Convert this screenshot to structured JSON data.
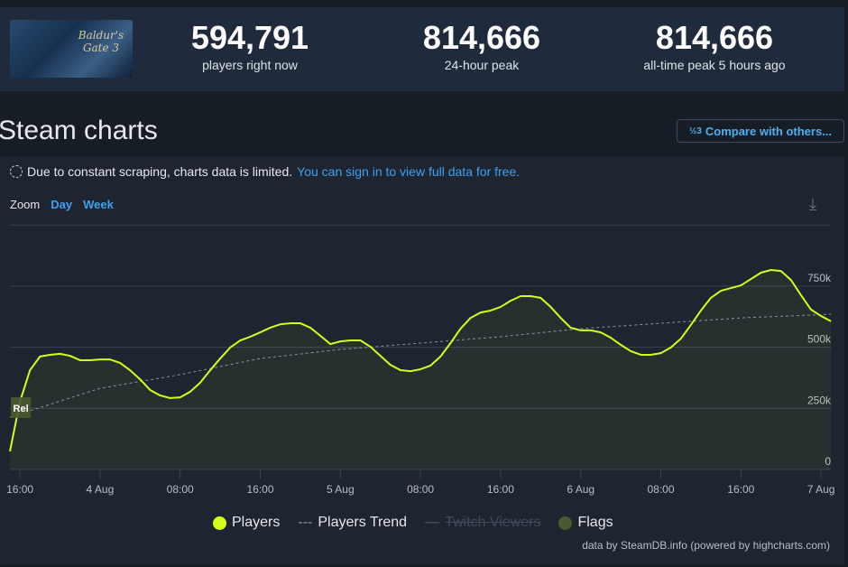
{
  "game": {
    "cover_text": "Baldur's Gate 3"
  },
  "stats": [
    {
      "value": "594,791",
      "label": "players right now"
    },
    {
      "value": "814,666",
      "label": "24-hour peak"
    },
    {
      "value": "814,666",
      "label": "all-time peak 5 hours ago"
    }
  ],
  "title": "Steam charts",
  "compare": {
    "icon": "fraction-icon",
    "icon_text": "½3",
    "label": "Compare with others..."
  },
  "notice": {
    "text": "Due to constant scraping, charts data is limited.",
    "link": "You can sign in to view full data for free."
  },
  "zoom": {
    "label": "Zoom",
    "options": [
      "Day",
      "Week"
    ]
  },
  "legend": {
    "players": "Players",
    "trend": "Players Trend",
    "twitch": "Twitch Viewers",
    "flags": "Flags"
  },
  "credit": "data by SteamDB.info (powered by highcharts.com)",
  "chart_data": {
    "type": "line",
    "ylim": [
      0,
      1000000
    ],
    "yticks": [
      {
        "v": 0,
        "label": "0"
      },
      {
        "v": 250000,
        "label": "250k"
      },
      {
        "v": 500000,
        "label": "500k"
      },
      {
        "v": 750000,
        "label": "750k"
      }
    ],
    "xticks": [
      {
        "t": "3 16",
        "label": "16:00"
      },
      {
        "t": "4 0",
        "label": "4 Aug"
      },
      {
        "t": "4 8",
        "label": "08:00"
      },
      {
        "t": "4 16",
        "label": "16:00"
      },
      {
        "t": "5 0",
        "label": "5 Aug"
      },
      {
        "t": "5 8",
        "label": "08:00"
      },
      {
        "t": "5 16",
        "label": "16:00"
      },
      {
        "t": "6 0",
        "label": "6 Aug"
      },
      {
        "t": "6 8",
        "label": "08:00"
      },
      {
        "t": "6 16",
        "label": "16:00"
      },
      {
        "t": "7 0",
        "label": "7 Aug"
      }
    ],
    "colors": {
      "players": "#d4ff1a",
      "trend": "#8a929e",
      "flags": "#4a5a30",
      "grid": "#3a4250"
    },
    "flag": {
      "t": "3 16",
      "label": "Rel"
    },
    "series": [
      {
        "name": "Players",
        "start": "Aug 3 15:00",
        "interval": "1h",
        "values": [
          74000,
          277000,
          406000,
          462000,
          469000,
          473000,
          465000,
          447000,
          447000,
          450000,
          450000,
          436000,
          406000,
          369000,
          325000,
          303000,
          292000,
          295000,
          318000,
          355000,
          406000,
          454000,
          499000,
          528000,
          543000,
          561000,
          580000,
          594000,
          598000,
          598000,
          580000,
          547000,
          513000,
          524000,
          528000,
          528000,
          502000,
          465000,
          428000,
          406000,
          402000,
          410000,
          425000,
          462000,
          517000,
          576000,
          620000,
          642000,
          650000,
          665000,
          690000,
          709000,
          709000,
          702000,
          665000,
          620000,
          580000,
          569000,
          569000,
          561000,
          539000,
          510000,
          484000,
          469000,
          469000,
          476000,
          499000,
          535000,
          591000,
          650000,
          702000,
          731000,
          742000,
          753000,
          779000,
          805000,
          816000,
          812000,
          775000,
          713000,
          654000,
          628000,
          606000
        ]
      },
      {
        "name": "Players Trend",
        "points": [
          [
            "3 15",
            214000
          ],
          [
            "4 0",
            332000
          ],
          [
            "4 8",
            388000
          ],
          [
            "4 16",
            454000
          ],
          [
            "5 0",
            491000
          ],
          [
            "5 8",
            517000
          ],
          [
            "5 16",
            543000
          ],
          [
            "6 0",
            576000
          ],
          [
            "6 8",
            598000
          ],
          [
            "6 16",
            620000
          ],
          [
            "7 1",
            635000
          ]
        ]
      }
    ]
  }
}
